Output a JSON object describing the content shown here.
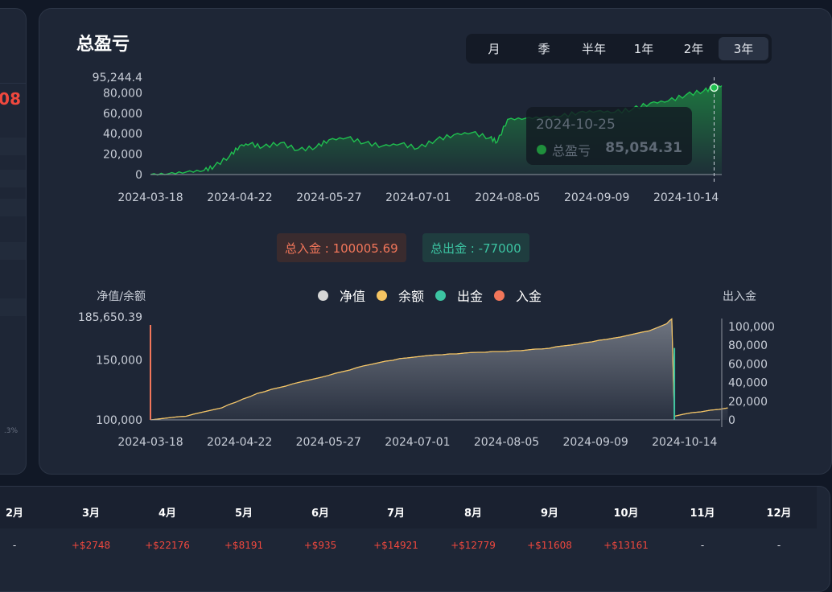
{
  "left_panel": {
    "value": "08",
    "pct": ".3%"
  },
  "card": {
    "title": "总盈亏",
    "range_tabs": [
      "月",
      "季",
      "半年",
      "1年",
      "2年",
      "3年"
    ],
    "active_tab": "3年"
  },
  "tooltip": {
    "date": "2024-10-25",
    "label": "总盈亏",
    "value": "85,054.31"
  },
  "summary": {
    "deposit": "总入金 : 100005.69",
    "withdraw": "总出金 : -77000"
  },
  "legend": [
    {
      "label": "净值",
      "color": "#d6d6d6"
    },
    {
      "label": "余额",
      "color": "#f5c462"
    },
    {
      "label": "出金",
      "color": "#3cc4a2"
    },
    {
      "label": "入金",
      "color": "#f2765a"
    }
  ],
  "chart_data": [
    {
      "type": "area",
      "title": "总盈亏",
      "x_ticks": [
        "2024-03-18",
        "2024-04-22",
        "2024-05-27",
        "2024-07-01",
        "2024-08-05",
        "2024-09-09",
        "2024-10-14"
      ],
      "y_ticks": [
        "95,244.4",
        "80,000",
        "60,000",
        "40,000",
        "20,000",
        "0"
      ],
      "ylim": [
        0,
        95244.4
      ],
      "color": "#1fbf4f",
      "series": [
        {
          "x": [
            "2024-03-18",
            "2024-03-25",
            "2024-04-01",
            "2024-04-08",
            "2024-04-12",
            "2024-04-18",
            "2024-04-22",
            "2024-04-26",
            "2024-05-01",
            "2024-05-08",
            "2024-05-15",
            "2024-05-22",
            "2024-05-27",
            "2024-06-03",
            "2024-06-10",
            "2024-06-17",
            "2024-06-24",
            "2024-07-01",
            "2024-07-08",
            "2024-07-15",
            "2024-07-22",
            "2024-07-29",
            "2024-08-01",
            "2024-08-05",
            "2024-08-12",
            "2024-08-19",
            "2024-08-26",
            "2024-09-02",
            "2024-09-09",
            "2024-09-16",
            "2024-09-23",
            "2024-09-30",
            "2024-10-07",
            "2024-10-14",
            "2024-10-21",
            "2024-10-25",
            "2024-10-28"
          ],
          "values": [
            0,
            800,
            2500,
            4000,
            8000,
            18000,
            28000,
            30000,
            27000,
            31000,
            24000,
            27000,
            34000,
            36000,
            31000,
            28000,
            30000,
            26000,
            34000,
            39000,
            41000,
            36000,
            32000,
            54000,
            55000,
            56000,
            57000,
            61000,
            62000,
            61000,
            64000,
            70000,
            72000,
            78000,
            82000,
            85054.31,
            87000
          ]
        }
      ]
    },
    {
      "type": "area",
      "title": "",
      "left_axis_label": "净值/余额",
      "right_axis_label": "出入金",
      "x_ticks": [
        "2024-03-18",
        "2024-04-22",
        "2024-05-27",
        "2024-07-01",
        "2024-08-05",
        "2024-09-09",
        "2024-10-14"
      ],
      "y_left_ticks": [
        "185,650.39",
        "150,000",
        "100,000"
      ],
      "y_right_ticks": [
        "100,000",
        "80,000",
        "60,000",
        "40,000",
        "20,000",
        "0"
      ],
      "ylim_left": [
        100000,
        185650.39
      ],
      "ylim_right": [
        0,
        100000
      ],
      "series": [
        {
          "name": "净值",
          "x": [
            "2024-03-18",
            "2024-04-01",
            "2024-04-15",
            "2024-04-29",
            "2024-05-13",
            "2024-05-27",
            "2024-06-10",
            "2024-06-24",
            "2024-07-08",
            "2024-07-22",
            "2024-08-05",
            "2024-08-19",
            "2024-09-02",
            "2024-09-16",
            "2024-09-30",
            "2024-10-07",
            "2024-10-09",
            "2024-10-10",
            "2024-10-17",
            "2024-10-24",
            "2024-10-31"
          ],
          "values": [
            100000,
            103000,
            110000,
            122000,
            130000,
            137000,
            145000,
            151000,
            154000,
            156000,
            157000,
            159000,
            163000,
            168000,
            174000,
            180000,
            184000,
            103000,
            106000,
            108000,
            110000
          ]
        },
        {
          "name": "余额",
          "x": [
            "2024-03-18",
            "2024-04-01",
            "2024-04-15",
            "2024-04-29",
            "2024-05-13",
            "2024-05-27",
            "2024-06-10",
            "2024-06-24",
            "2024-07-08",
            "2024-07-22",
            "2024-08-05",
            "2024-08-19",
            "2024-09-02",
            "2024-09-16",
            "2024-09-30",
            "2024-10-07",
            "2024-10-09",
            "2024-10-10",
            "2024-10-17",
            "2024-10-24",
            "2024-10-31"
          ],
          "values": [
            100000,
            103000,
            110000,
            122000,
            130000,
            137000,
            145000,
            151000,
            154000,
            156000,
            157000,
            159000,
            163000,
            168000,
            174000,
            180000,
            184000,
            103000,
            106000,
            108000,
            110000
          ]
        },
        {
          "name": "入金",
          "x": [
            "2024-03-18"
          ],
          "values": [
            100005.69
          ]
        },
        {
          "name": "出金",
          "x": [
            "2024-10-10"
          ],
          "values": [
            77000
          ]
        }
      ]
    }
  ],
  "monthly": {
    "months": [
      "2月",
      "3月",
      "4月",
      "5月",
      "6月",
      "7月",
      "8月",
      "9月",
      "10月",
      "11月",
      "12月"
    ],
    "values": [
      "-",
      "+$2748",
      "+$22176",
      "+$8191",
      "+$935",
      "+$14921",
      "+$12779",
      "+$11608",
      "+$13161",
      "-",
      "-"
    ]
  }
}
